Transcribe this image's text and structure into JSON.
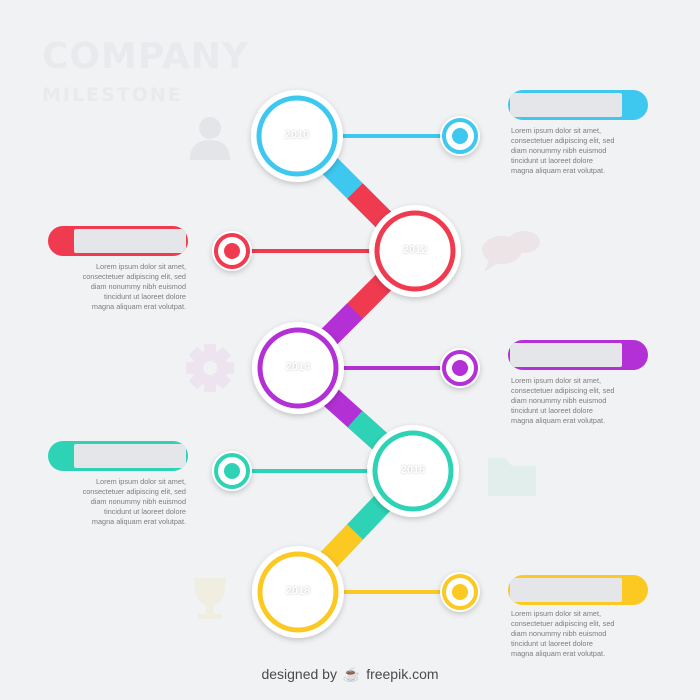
{
  "title": {
    "line1": "COMPANY",
    "line2": "MILESTONE"
  },
  "colors": {
    "background": "#f1f2f4",
    "blue": "#3ec8f0",
    "red": "#f03a4f",
    "purple": "#b32fd6",
    "teal": "#2ed3b5",
    "yellow": "#fcc923"
  },
  "milestones": [
    {
      "year": "2010",
      "color": "#3ec8f0",
      "side": "right",
      "icon": "user-icon",
      "text": [
        "Lorem ipsum dolor sit amet,",
        "consectetuer adipiscing elit, sed",
        "diam nonummy nibh euismod",
        "tincidunt ut laoreet dolore",
        "magna aliquam erat volutpat."
      ]
    },
    {
      "year": "2012",
      "color": "#f03a4f",
      "side": "left",
      "icon": "chat-bubbles-icon",
      "text": [
        "Lorem ipsum dolor sit amet,",
        "consectetuer adipiscing elit, sed",
        "diam nonummy nibh euismod",
        "tincidunt ut laoreet dolore",
        "magna aliquam erat volutpat."
      ]
    },
    {
      "year": "2014",
      "color": "#b32fd6",
      "side": "right",
      "icon": "gear-icon",
      "text": [
        "Lorem ipsum dolor sit amet,",
        "consectetuer adipiscing elit, sed",
        "diam nonummy nibh euismod",
        "tincidunt ut laoreet dolore",
        "magna aliquam erat volutpat."
      ]
    },
    {
      "year": "2016",
      "color": "#2ed3b5",
      "side": "left",
      "icon": "folder-icon",
      "text": [
        "Lorem ipsum dolor sit amet,",
        "consectetuer adipiscing elit, sed",
        "diam nonummy nibh euismod",
        "tincidunt ut laoreet dolore",
        "magna aliquam erat volutpat."
      ]
    },
    {
      "year": "2018",
      "color": "#fcc923",
      "side": "right",
      "icon": "trophy-icon",
      "text": [
        "Lorem ipsum dolor sit amet,",
        "consectetuer adipiscing elit, sed",
        "diam nonummy nibh euismod",
        "tincidunt ut laoreet dolore",
        "magna aliquam erat volutpat."
      ]
    }
  ],
  "credit": {
    "prefix": "designed by",
    "logo_icon": "freepik-logo-icon",
    "brand": "freepik.com"
  }
}
